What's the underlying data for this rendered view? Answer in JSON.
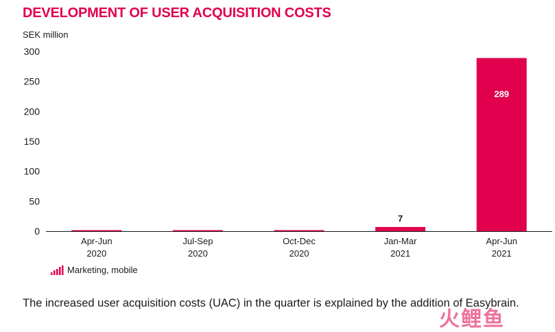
{
  "colors": {
    "accent": "#e0004d",
    "axis": "#1a1a1a"
  },
  "legend_icon": "bar-chart-icon",
  "chart_data": {
    "type": "bar",
    "title": "DEVELOPMENT OF USER ACQUISITION COSTS",
    "ylabel": "SEK million",
    "categories": [
      [
        "Apr-Jun",
        "2020"
      ],
      [
        "Jul-Sep",
        "2020"
      ],
      [
        "Oct-Dec",
        "2020"
      ],
      [
        "Jan-Mar",
        "2021"
      ],
      [
        "Apr-Jun",
        "2021"
      ]
    ],
    "series": [
      {
        "name": "Marketing, mobile",
        "values": [
          0,
          0,
          0,
          7,
          289
        ]
      }
    ],
    "data_labels": [
      "",
      "",
      "",
      "7",
      "289"
    ],
    "yticks": [
      0,
      50,
      100,
      150,
      200,
      250,
      300
    ],
    "ylim": [
      0,
      300
    ],
    "grid": false,
    "legend": "bottom-left"
  },
  "caption": "The increased user acquisition costs (UAC) in the quarter is explained by the addition of Easybrain.",
  "watermark": "火鲤鱼"
}
